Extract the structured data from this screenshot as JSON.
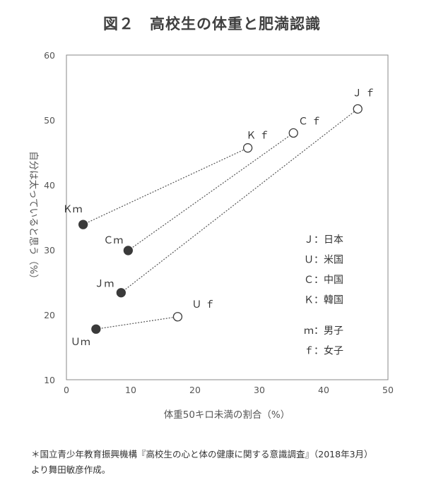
{
  "title": "図２　高校生の体重と肥満認識",
  "chart_data": {
    "type": "scatter",
    "xlabel": "体重50キロ未満の割合（%）",
    "ylabel": "自分は太っていると思う（%）",
    "xlim": [
      0,
      50
    ],
    "ylim": [
      10,
      60
    ],
    "xticks": [
      0,
      10,
      20,
      30,
      40,
      50
    ],
    "yticks": [
      10,
      20,
      30,
      40,
      50,
      60
    ],
    "grid": false,
    "points": [
      {
        "label": "Ｋｍ",
        "x": 2.6,
        "y": 33.9,
        "filled": true
      },
      {
        "label": "Ｋ ｆ",
        "x": 28.2,
        "y": 45.7,
        "filled": false
      },
      {
        "label": "Ｃｍ",
        "x": 9.6,
        "y": 29.9,
        "filled": true
      },
      {
        "label": "Ｃ ｆ",
        "x": 35.3,
        "y": 48.0,
        "filled": false
      },
      {
        "label": "Ｊｍ",
        "x": 8.5,
        "y": 23.4,
        "filled": true
      },
      {
        "label": "Ｊ ｆ",
        "x": 45.3,
        "y": 51.7,
        "filled": false
      },
      {
        "label": "Ｕｍ",
        "x": 4.6,
        "y": 17.8,
        "filled": true
      },
      {
        "label": "Ｕ ｆ",
        "x": 17.3,
        "y": 19.7,
        "filled": false
      }
    ],
    "pairs": [
      [
        0,
        1
      ],
      [
        2,
        3
      ],
      [
        4,
        5
      ],
      [
        6,
        7
      ]
    ],
    "legend": {
      "position": "right",
      "countries": [
        "Ｊ：日本",
        "Ｕ：米国",
        "Ｃ：中国",
        "Ｋ：韓国"
      ],
      "genders": [
        "ｍ：男子",
        "ｆ：女子"
      ]
    }
  },
  "note": {
    "line1": "＊国立青少年教育振興機構『高校生の心と体の健康に関する意識調査』（2018年3月）",
    "line2": "より舞田敏彦作成。"
  }
}
